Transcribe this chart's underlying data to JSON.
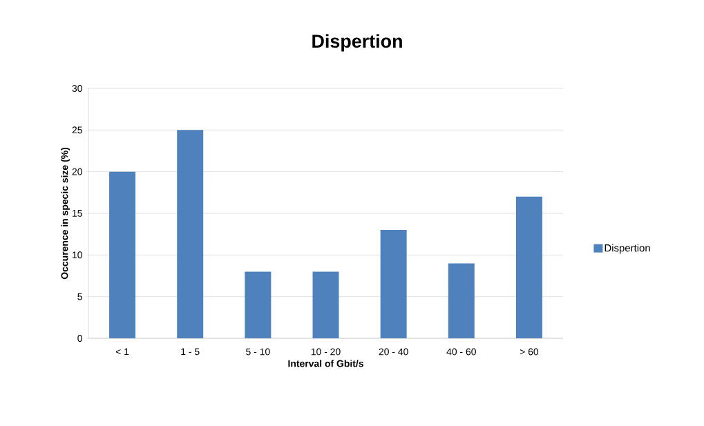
{
  "chart_data": {
    "type": "bar",
    "title": "Dispertion",
    "xlabel": "Interval of Gbit/s",
    "ylabel": "Occurence in specic size  (%)",
    "categories": [
      "< 1",
      "1 - 5",
      "5 - 10",
      "10 - 20",
      "20 - 40",
      "40 - 60",
      "> 60"
    ],
    "series": [
      {
        "name": "Dispertion",
        "color": "#4f81bd",
        "values": [
          20,
          25,
          8,
          8,
          13,
          9,
          17
        ]
      }
    ],
    "ylim": [
      0,
      30
    ],
    "yticks": [
      0,
      5,
      10,
      15,
      20,
      25,
      30
    ],
    "grid": "y",
    "legend": "right"
  }
}
